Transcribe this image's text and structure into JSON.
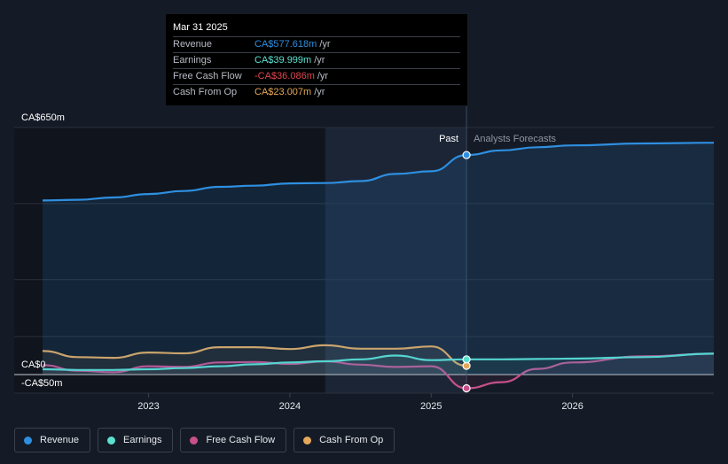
{
  "chart_data": {
    "type": "line",
    "title": "",
    "xlabel": "",
    "ylabel": "",
    "currency_unit": "CA$",
    "ylim": [
      -50,
      650
    ],
    "y_ticks": [
      {
        "value": 650,
        "label": "CA$650m"
      },
      {
        "value": 0,
        "label": "CA$0"
      },
      {
        "value": -50,
        "label": "-CA$50m"
      }
    ],
    "xlim": [
      2022.25,
      2027.0
    ],
    "x_ticks": [
      {
        "value": 2023,
        "label": "2023"
      },
      {
        "value": 2024,
        "label": "2024"
      },
      {
        "value": 2025,
        "label": "2025"
      },
      {
        "value": 2026,
        "label": "2026"
      }
    ],
    "divider_x": 2025.25,
    "shaded_start_x": 2024.25,
    "past_label": "Past",
    "forecast_label": "Analysts Forecasts",
    "series": [
      {
        "name": "Revenue",
        "color": "#2e8fe0",
        "fill": true,
        "points": [
          [
            2022.25,
            458
          ],
          [
            2022.5,
            460
          ],
          [
            2022.75,
            466
          ],
          [
            2023.0,
            475
          ],
          [
            2023.25,
            483
          ],
          [
            2023.5,
            494
          ],
          [
            2023.75,
            497
          ],
          [
            2024.0,
            503
          ],
          [
            2024.25,
            504
          ],
          [
            2024.5,
            509
          ],
          [
            2024.75,
            528
          ],
          [
            2025.0,
            535
          ],
          [
            2025.25,
            577.6
          ]
        ],
        "forecast": [
          [
            2025.25,
            577.6
          ],
          [
            2025.5,
            590
          ],
          [
            2025.75,
            598
          ],
          [
            2026.0,
            603
          ],
          [
            2026.5,
            608
          ],
          [
            2027.0,
            610
          ]
        ]
      },
      {
        "name": "Earnings",
        "color": "#5ce0cf",
        "fill": false,
        "points": [
          [
            2022.25,
            14
          ],
          [
            2022.5,
            12
          ],
          [
            2022.75,
            12
          ],
          [
            2023.0,
            14
          ],
          [
            2023.25,
            17
          ],
          [
            2023.5,
            22
          ],
          [
            2023.75,
            27
          ],
          [
            2024.0,
            32
          ],
          [
            2024.25,
            35
          ],
          [
            2024.5,
            40
          ],
          [
            2024.75,
            50
          ],
          [
            2025.0,
            38
          ],
          [
            2025.25,
            40.0
          ]
        ],
        "forecast": [
          [
            2025.25,
            40.0
          ],
          [
            2025.5,
            40
          ],
          [
            2025.75,
            41
          ],
          [
            2026.0,
            42
          ],
          [
            2026.5,
            46
          ],
          [
            2027.0,
            55
          ]
        ]
      },
      {
        "name": "Free Cash Flow",
        "color": "#c7508a",
        "fill": false,
        "points": [
          [
            2022.25,
            25
          ],
          [
            2022.5,
            10
          ],
          [
            2022.75,
            6
          ],
          [
            2023.0,
            22
          ],
          [
            2023.25,
            20
          ],
          [
            2023.5,
            32
          ],
          [
            2023.75,
            33
          ],
          [
            2024.0,
            28
          ],
          [
            2024.25,
            35
          ],
          [
            2024.5,
            26
          ],
          [
            2024.75,
            20
          ],
          [
            2025.0,
            22
          ],
          [
            2025.25,
            -36.1
          ]
        ],
        "forecast": [
          [
            2025.25,
            -36.1
          ],
          [
            2025.5,
            -20
          ],
          [
            2025.75,
            15
          ],
          [
            2026.0,
            32
          ],
          [
            2026.5,
            48
          ],
          [
            2027.0,
            55
          ]
        ]
      },
      {
        "name": "Cash From Op",
        "color": "#e5a85a",
        "fill": false,
        "points": [
          [
            2022.25,
            62
          ],
          [
            2022.5,
            46
          ],
          [
            2022.75,
            44
          ],
          [
            2023.0,
            58
          ],
          [
            2023.25,
            56
          ],
          [
            2023.5,
            72
          ],
          [
            2023.75,
            72
          ],
          [
            2024.0,
            67
          ],
          [
            2024.25,
            77
          ],
          [
            2024.5,
            68
          ],
          [
            2024.75,
            68
          ],
          [
            2025.0,
            74
          ],
          [
            2025.25,
            23.0
          ]
        ],
        "forecast": []
      }
    ]
  },
  "tooltip": {
    "date": "Mar 31 2025",
    "unit": "/yr",
    "rows": [
      {
        "label": "Revenue",
        "value": "CA$577.618m",
        "color": "#2e8fe0"
      },
      {
        "label": "Earnings",
        "value": "CA$39.999m",
        "color": "#5ce0cf"
      },
      {
        "label": "Free Cash Flow",
        "value": "-CA$36.086m",
        "color": "#e0454f"
      },
      {
        "label": "Cash From Op",
        "value": "CA$23.007m",
        "color": "#e5a85a"
      }
    ]
  },
  "legend": [
    {
      "label": "Revenue",
      "color": "#2e8fe0"
    },
    {
      "label": "Earnings",
      "color": "#5ce0cf"
    },
    {
      "label": "Free Cash Flow",
      "color": "#c7508a"
    },
    {
      "label": "Cash From Op",
      "color": "#e5a85a"
    }
  ]
}
